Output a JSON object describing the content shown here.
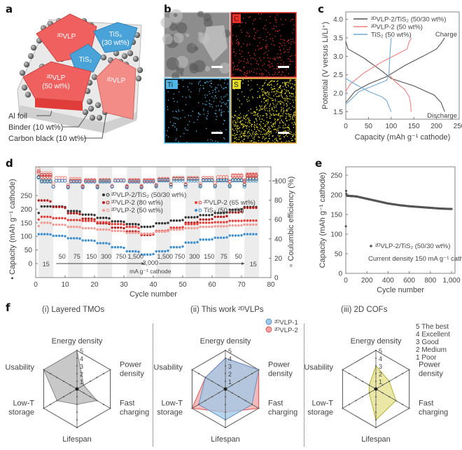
{
  "panels": {
    "a": {
      "letter": "a",
      "components": {
        "vlp_top": "²ᴰVLP",
        "tis2_top": "TiS₂",
        "tis2_top_wt": "(30 wt%)",
        "tis2_mid": "TiS₂",
        "vlp_left": "²ᴰVLP",
        "vlp_left_wt": "(50 wt%)",
        "vlp_right": "²ᴰVLP"
      },
      "callouts": [
        "Al foil",
        "Binder (10 wt%)",
        "Carbon black (10 wt%)"
      ],
      "colors": {
        "vlp": "#f0605e",
        "vlp_light": "#f38b87",
        "tis2": "#4aa3d8",
        "carbon": "#6a6a6a"
      }
    },
    "b": {
      "letter": "b",
      "tiles": [
        {
          "label": "",
          "type": "sem",
          "border": "#bbbbbb"
        },
        {
          "label": "C",
          "type": "map",
          "color": "#e8302a",
          "border": "#e8302a"
        },
        {
          "label": "Ti",
          "type": "map",
          "color": "#4fb7e6",
          "border": "#4fb7e6"
        },
        {
          "label": "S",
          "type": "map",
          "color": "#e3d92a",
          "border": "#e3a92a"
        }
      ]
    },
    "f": {
      "letter": "f",
      "axes": [
        "Energy density",
        "Power density",
        "Fast charging",
        "Lifespan",
        "Low-T storage",
        "Usability"
      ],
      "scale_ticks": [
        "1",
        "2",
        "3",
        "4",
        "5"
      ],
      "rating_key": [
        "5 The best",
        "4 Excellent",
        "3 Good",
        "2 Medium",
        "1 Poor"
      ],
      "radars": [
        {
          "index": "(i)",
          "title": "Layered TMOs",
          "series": [
            {
              "name": "Layered TMOs",
              "values": [
                5,
                1,
                3,
                2,
                3,
                5
              ],
              "fill": "#b5b5b5",
              "stroke": "#8a8a8a"
            }
          ]
        },
        {
          "index": "(ii)",
          "title": "This work ²ᴰVLPs",
          "series": [
            {
              "name": "²ᴰVLP-2",
              "values": [
                4,
                5,
                5,
                3,
                5,
                3
              ],
              "fill": "#f2a4a4",
              "stroke": "#e05a5a"
            },
            {
              "name": "²ᴰVLP-1",
              "values": [
                4,
                5,
                4,
                4,
                4,
                3
              ],
              "fill": "#9cc9e8",
              "stroke": "#6a8fc0"
            }
          ]
        },
        {
          "index": "(iii)",
          "title": "2D COFs",
          "series": [
            {
              "name": "2D COFs",
              "values": [
                3,
                2,
                3,
                4,
                1,
                1
              ],
              "fill": "#e4e08a",
              "stroke": "#b8b22e"
            }
          ]
        }
      ]
    }
  },
  "chart_data": [
    {
      "id": "c",
      "type": "line",
      "title": "",
      "xlabel": "Capacity (mAh g⁻¹ cathode)",
      "ylabel": "Potential (V versus Li/Li⁺)",
      "xlim": [
        0,
        250
      ],
      "ylim": [
        1.3,
        4.2
      ],
      "xticks": [
        0,
        50,
        100,
        150,
        200,
        250
      ],
      "yticks": [
        1.5,
        2.0,
        2.5,
        3.0,
        3.5,
        4.0
      ],
      "legend": "top-left",
      "annotations": [
        "Charge",
        "Discharge"
      ],
      "series": [
        {
          "name": "²ᴰVLP-2/TiS₂ (50/30 wt%)",
          "color": "#555555",
          "charge": [
            [
              0,
              1.75
            ],
            [
              20,
              2.05
            ],
            [
              50,
              2.25
            ],
            [
              90,
              2.45
            ],
            [
              130,
              2.75
            ],
            [
              170,
              3.0
            ],
            [
              200,
              3.2
            ],
            [
              210,
              3.35
            ],
            [
              218,
              3.5
            ]
          ],
          "discharge": [
            [
              0,
              3.4
            ],
            [
              5,
              3.2
            ],
            [
              40,
              2.95
            ],
            [
              80,
              2.6
            ],
            [
              100,
              2.4
            ],
            [
              150,
              2.2
            ],
            [
              195,
              1.95
            ],
            [
              210,
              1.75
            ],
            [
              218,
              1.5
            ]
          ]
        },
        {
          "name": "²ᴰVLP-2 (50 wt%)",
          "color": "#f08080",
          "charge": [
            [
              0,
              2.05
            ],
            [
              10,
              2.25
            ],
            [
              40,
              2.55
            ],
            [
              80,
              2.85
            ],
            [
              120,
              3.1
            ],
            [
              135,
              3.2
            ],
            [
              140,
              3.4
            ],
            [
              145,
              3.5
            ]
          ],
          "discharge": [
            [
              95,
              2.5
            ],
            [
              110,
              2.3
            ],
            [
              130,
              2.1
            ],
            [
              140,
              1.9
            ],
            [
              143,
              1.7
            ],
            [
              144,
              1.5
            ]
          ]
        },
        {
          "name": "TiS₂ (50 wt%)",
          "color": "#6fa8d6",
          "charge": [
            [
              0,
              1.7
            ],
            [
              30,
              2.05
            ],
            [
              70,
              2.25
            ],
            [
              90,
              2.35
            ],
            [
              95,
              2.5
            ],
            [
              97,
              3.0
            ],
            [
              100,
              3.5
            ]
          ],
          "discharge": [
            [
              0,
              2.4
            ],
            [
              20,
              2.25
            ],
            [
              50,
              2.05
            ],
            [
              80,
              1.9
            ],
            [
              90,
              1.8
            ],
            [
              100,
              1.5
            ]
          ]
        }
      ]
    },
    {
      "id": "d",
      "type": "scatter",
      "xlabel": "Cycle number",
      "ylabel": "Capacity (mAh g⁻¹ cathode)",
      "y2label": "Coulumbic efficiency (%)",
      "xlim": [
        0,
        80
      ],
      "ylim": [
        0,
        250
      ],
      "y2lim": [
        0,
        100
      ],
      "xticks": [
        0,
        10,
        20,
        30,
        40,
        50,
        60,
        70,
        80
      ],
      "yticks": [
        0,
        50,
        100,
        150,
        200,
        250
      ],
      "y2ticks": [
        0,
        20,
        40,
        60,
        80,
        100
      ],
      "rate_labels": [
        "15",
        "50",
        "75",
        "150",
        "300",
        "750",
        "1,500",
        "3,000",
        "1,500",
        "750",
        "300",
        "150",
        "75",
        "50",
        "15"
      ],
      "rate_unit": "mA g⁻¹ cathode",
      "legend": "center",
      "series": [
        {
          "name": "²ᴰVLP-2/TiS₂ (50/30 wt%)",
          "color": "#333333",
          "step_values": [
            210,
            210,
            193,
            180,
            168,
            155,
            145,
            135,
            148,
            158,
            170,
            178,
            186,
            198,
            208
          ],
          "first_cycle": 186,
          "ce_offsets": [
            0,
            0,
            0,
            0,
            0,
            0,
            0,
            0,
            1,
            2,
            2,
            1,
            1,
            1,
            2
          ]
        },
        {
          "name": "²ᴰVLP-2 (80 wt%)",
          "color": "#b52020",
          "step_values": [
            232,
            208,
            185,
            165,
            148,
            132,
            118,
            105,
            118,
            130,
            150,
            162,
            172,
            188,
            205
          ],
          "first_cycle": 232,
          "ce_offsets": [
            6,
            0,
            0,
            0,
            1,
            0,
            0,
            0,
            2,
            3,
            3,
            3,
            4,
            5,
            6
          ]
        },
        {
          "name": "²ᴰVLP-2 (65 wt%)",
          "color": "#e8403a",
          "step_values": [
            172,
            167,
            160,
            157,
            152,
            145,
            135,
            108,
            120,
            132,
            145,
            150,
            152,
            157,
            158
          ],
          "first_cycle": 162,
          "ce_offsets": [
            4,
            3,
            2,
            1,
            1,
            1,
            1,
            1,
            2,
            3,
            3,
            3,
            4,
            5,
            5
          ]
        },
        {
          "name": "²ᴰVLP-2 (50 wt%)",
          "color": "#f29a94",
          "step_values": [
            150,
            143,
            135,
            130,
            125,
            120,
            113,
            110,
            118,
            125,
            130,
            135,
            137,
            140,
            143
          ],
          "first_cycle": 138,
          "ce_offsets": [
            8,
            3,
            2,
            1,
            1,
            1,
            1,
            1,
            2,
            3,
            3,
            3,
            4,
            6,
            7
          ]
        },
        {
          "name": "TiS₂ (50 wt%)",
          "color": "#3d8fcf",
          "step_values": [
            108,
            102,
            93,
            85,
            75,
            60,
            45,
            33,
            45,
            60,
            77,
            88,
            95,
            103,
            108
          ],
          "first_cycle": 108,
          "ce_offsets": [
            -1,
            0,
            -1,
            -1,
            -1,
            0,
            -1,
            -1,
            0,
            0,
            0,
            0,
            0,
            0,
            0
          ]
        }
      ],
      "cycles_per_step": 5
    },
    {
      "id": "e",
      "type": "scatter",
      "xlabel": "Cycle number",
      "ylabel": "Capacity (mAh g⁻¹ cathode)",
      "xlim": [
        0,
        1000
      ],
      "ylim": [
        0,
        250
      ],
      "xticks": [
        0,
        200,
        400,
        600,
        800,
        1000
      ],
      "xticklabels": [
        "0",
        "200",
        "400",
        "600",
        "800",
        "1,000"
      ],
      "yticks": [
        0,
        50,
        100,
        150,
        200,
        250
      ],
      "legend": "bottom-center",
      "legend_label": "²ᴰVLP-2/TiS₂ (50/30 wt%)",
      "annotation": "Current density 150 mA g⁻¹ cathode",
      "series": [
        {
          "name": "²ᴰVLP-2/TiS₂ (50/30 wt%)",
          "color": "#555555",
          "x": [
            1,
            3,
            5,
            10,
            50,
            100,
            200,
            300,
            400,
            500,
            600,
            700,
            800,
            900,
            1000
          ],
          "y": [
            120,
            210,
            203,
            198,
            197,
            196,
            190,
            184,
            178,
            174,
            171,
            169,
            167,
            165,
            164
          ]
        }
      ]
    }
  ]
}
